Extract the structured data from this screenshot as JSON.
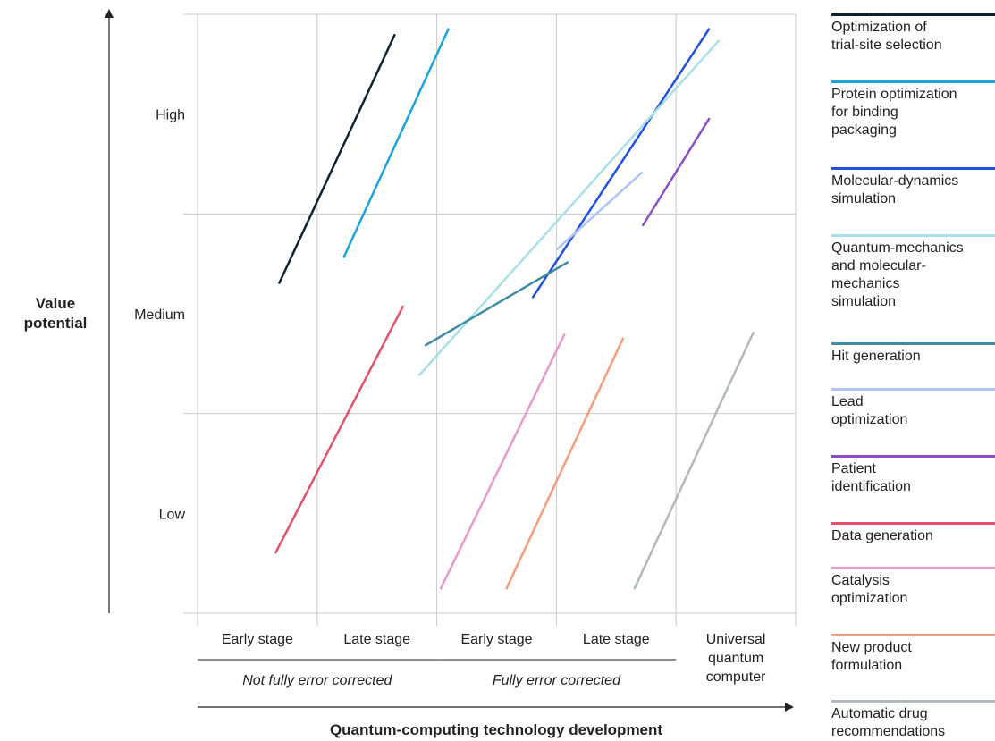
{
  "chart_data": {
    "type": "line",
    "ylabel": "Value\npotential",
    "xlabel": "Quantum-computing technology development",
    "y_levels": [
      "Low",
      "Medium",
      "High"
    ],
    "x_stages": [
      "Early stage",
      "Late stage",
      "Early stage",
      "Late stage",
      "Universal\nquantum\ncomputer"
    ],
    "x_groups": [
      {
        "label": "Not fully error corrected",
        "stages": [
          0,
          1
        ]
      },
      {
        "label": "Fully error corrected",
        "stages": [
          2,
          3
        ]
      }
    ],
    "xlim": [
      0,
      5
    ],
    "ylim": [
      0,
      3
    ],
    "series": [
      {
        "name": "Optimization of\ntrial-site selection",
        "color": "#0f2233",
        "x": [
          0.68,
          1.65
        ],
        "y": [
          1.65,
          2.9
        ]
      },
      {
        "name": "Protein optimization\nfor binding\npackaging",
        "color": "#19a3dc",
        "x": [
          1.22,
          2.1
        ],
        "y": [
          1.78,
          2.93
        ]
      },
      {
        "name": "Molecular-dynamics\nsimulation",
        "color": "#2050e0",
        "x": [
          2.8,
          4.28
        ],
        "y": [
          1.58,
          2.93
        ]
      },
      {
        "name": "Quantum-mechanics\nand molecular-\nmechanics\nsimulation",
        "color": "#a8e0e8",
        "x": [
          1.85,
          4.36
        ],
        "y": [
          1.19,
          2.87
        ]
      },
      {
        "name": "Hit generation",
        "color": "#3d8da5",
        "x": [
          1.9,
          3.1
        ],
        "y": [
          1.34,
          1.76
        ]
      },
      {
        "name": "Lead\noptimization",
        "color": "#afc4f5",
        "x": [
          3.0,
          3.72
        ],
        "y": [
          1.82,
          2.21
        ]
      },
      {
        "name": "Patient\nidentification",
        "color": "#8a4fc8",
        "x": [
          3.72,
          4.28
        ],
        "y": [
          1.94,
          2.48
        ]
      },
      {
        "name": "Data generation",
        "color": "#e0536a",
        "x": [
          0.65,
          1.72
        ],
        "y": [
          0.3,
          1.54
        ]
      },
      {
        "name": "Catalysis\noptimization",
        "color": "#e69acb",
        "x": [
          2.03,
          3.07
        ],
        "y": [
          0.12,
          1.4
        ]
      },
      {
        "name": "New product\nformulation",
        "color": "#f59c7c",
        "x": [
          2.58,
          3.56
        ],
        "y": [
          0.12,
          1.38
        ]
      },
      {
        "name": "Automatic drug\nrecommendations",
        "color": "#b1b8bd",
        "x": [
          3.65,
          4.65
        ],
        "y": [
          0.12,
          1.41
        ]
      }
    ]
  }
}
